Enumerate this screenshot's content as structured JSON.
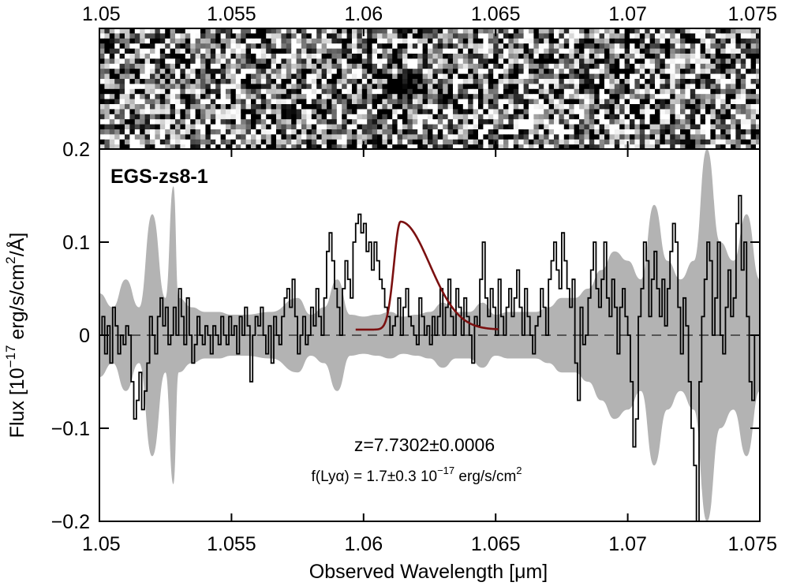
{
  "chart_data": {
    "type": "line",
    "object_label": "EGS-zs8-1",
    "xlabel": "Observed Wavelength [μm]",
    "ylabel_main": "Flux [10",
    "ylabel_exp": "−17",
    "ylabel_rest": " erg/s/cm",
    "ylabel_exp2": "2",
    "ylabel_tail": "/Å]",
    "xlim": [
      1.05,
      1.075
    ],
    "ylim": [
      -0.2,
      0.2
    ],
    "x_ticks": [
      1.05,
      1.055,
      1.06,
      1.065,
      1.07,
      1.075
    ],
    "x_tick_labels": [
      "1.05",
      "1.055",
      "1.06",
      "1.065",
      "1.07",
      "1.075"
    ],
    "y_ticks": [
      -0.2,
      -0.1,
      0,
      0.1,
      0.2
    ],
    "y_tick_labels": [
      "−0.2",
      "−0.1",
      "0",
      "0.1",
      "0.2"
    ],
    "annotation_redshift": "z=7.7302±0.0006",
    "annotation_flux_prefix": "f(Lyα) = 1.7±0.3 10",
    "annotation_flux_exp": "−17",
    "annotation_flux_unit": " erg/s/cm",
    "annotation_flux_exp2": "2",
    "colors": {
      "spectrum": "#000000",
      "noise_band": "#b3b3b3",
      "fit": "#7b1010",
      "zero_line": "#555555"
    },
    "fit_model": {
      "amplitude": 0.122,
      "peak_um": 1.0614,
      "rise_sigma_um": 0.00025,
      "decay_sigma_um": 0.0011,
      "x_range": [
        1.0597,
        1.0651
      ],
      "baseline": 0.006
    },
    "spectrum": {
      "x_start": 1.05,
      "x_step": 0.0001,
      "y": [
        0.0,
        0.02,
        -0.02,
        0.01,
        -0.03,
        0.03,
        0.01,
        -0.02,
        0.0,
        -0.01,
        0.01,
        0.0,
        -0.05,
        -0.09,
        -0.07,
        -0.04,
        -0.08,
        -0.06,
        -0.03,
        0.02,
        0.0,
        -0.02,
        0.02,
        0.04,
        0.01,
        0.03,
        -0.01,
        0.0,
        0.03,
        0.0,
        0.05,
        0.02,
        -0.01,
        0.04,
        0.0,
        -0.03,
        -0.01,
        0.02,
        0.0,
        -0.01,
        0.01,
        0.0,
        -0.02,
        0.01,
        0.0,
        -0.01,
        0.02,
        0.0,
        -0.01,
        0.02,
        0.0,
        0.01,
        -0.02,
        0.02,
        0.0,
        0.03,
        0.01,
        -0.05,
        0.0,
        0.02,
        0.01,
        0.03,
        0.0,
        -0.02,
        0.01,
        -0.03,
        0.02,
        0.0,
        -0.01,
        0.02,
        0.04,
        0.05,
        0.03,
        0.06,
        0.02,
        -0.02,
        0.0,
        0.02,
        -0.01,
        0.0,
        0.03,
        0.01,
        0.05,
        0.02,
        0.0,
        0.04,
        0.09,
        0.11,
        0.08,
        0.05,
        0.03,
        0.0,
        0.05,
        0.08,
        0.06,
        0.04,
        0.1,
        0.12,
        0.13,
        0.11,
        0.12,
        0.09,
        0.1,
        0.07,
        0.1,
        0.08,
        0.06,
        0.05,
        0.03,
        0.02,
        0.0,
        0.01,
        0.02,
        0.04,
        0.0,
        0.03,
        0.05,
        0.02,
        0.01,
        0.0,
        -0.01,
        0.04,
        0.02,
        0.0,
        0.01,
        -0.01,
        0.02,
        0.0,
        0.02,
        0.05,
        0.0,
        0.03,
        0.06,
        0.02,
        0.0,
        0.05,
        0.03,
        0.0,
        0.04,
        0.02,
        0.0,
        -0.03,
        0.02,
        0.01,
        0.06,
        0.1,
        0.04,
        0.02,
        0.05,
        0.03,
        0.0,
        0.06,
        0.02,
        0.0,
        0.03,
        0.05,
        0.02,
        0.04,
        0.07,
        0.03,
        0.0,
        0.05,
        0.02,
        0.0,
        -0.02,
        0.01,
        0.02,
        0.05,
        0.03,
        0.0,
        0.06,
        0.08,
        0.1,
        0.07,
        0.05,
        0.11,
        0.08,
        0.05,
        0.03,
        0.06,
        -0.03,
        -0.07,
        0.03,
        -0.01,
        0.0,
        0.04,
        0.07,
        0.1,
        0.05,
        0.03,
        0.06,
        0.1,
        0.04,
        0.02,
        0.06,
        0.03,
        -0.02,
        0.03,
        0.05,
        0.02,
        0.0,
        -0.05,
        -0.12,
        -0.09,
        0.02,
        0.05,
        0.1,
        0.08,
        0.02,
        0.06,
        0.09,
        0.05,
        0.02,
        0.06,
        0.01,
        0.05,
        0.09,
        0.12,
        0.1,
        0.03,
        -0.02,
        0.04,
        0.01,
        -0.05,
        -0.1,
        -0.14,
        -0.22,
        -0.05,
        0.02,
        0.06,
        0.1,
        0.08,
        0.0,
        0.04,
        0.1,
        0.0,
        -0.02,
        0.03,
        0.07,
        0.02,
        0.04,
        0.12,
        0.15,
        0.07,
        0.1,
        0.02,
        -0.05,
        -0.07,
        0.0
      ]
    },
    "noise": {
      "x": [
        1.05,
        1.0505,
        1.051,
        1.0515,
        1.052,
        1.0525,
        1.0528,
        1.053,
        1.0535,
        1.054,
        1.0545,
        1.055,
        1.0555,
        1.0565,
        1.0575,
        1.058,
        1.0585,
        1.059,
        1.0595,
        1.06,
        1.0605,
        1.061,
        1.0615,
        1.062,
        1.0625,
        1.063,
        1.0635,
        1.064,
        1.0645,
        1.065,
        1.0655,
        1.066,
        1.0665,
        1.067,
        1.0675,
        1.068,
        1.0685,
        1.069,
        1.0695,
        1.07,
        1.0705,
        1.071,
        1.0715,
        1.072,
        1.0725,
        1.073,
        1.0735,
        1.074,
        1.0745,
        1.075
      ],
      "sigma": [
        0.045,
        0.03,
        0.06,
        0.03,
        0.13,
        0.04,
        0.16,
        0.04,
        0.03,
        0.025,
        0.025,
        0.022,
        0.022,
        0.025,
        0.04,
        0.022,
        0.03,
        0.06,
        0.022,
        0.02,
        0.022,
        0.025,
        0.02,
        0.022,
        0.025,
        0.035,
        0.025,
        0.025,
        0.035,
        0.022,
        0.025,
        0.025,
        0.025,
        0.03,
        0.04,
        0.04,
        0.05,
        0.07,
        0.09,
        0.08,
        0.06,
        0.14,
        0.08,
        0.06,
        0.08,
        0.2,
        0.1,
        0.08,
        0.13,
        0.06
      ]
    }
  }
}
